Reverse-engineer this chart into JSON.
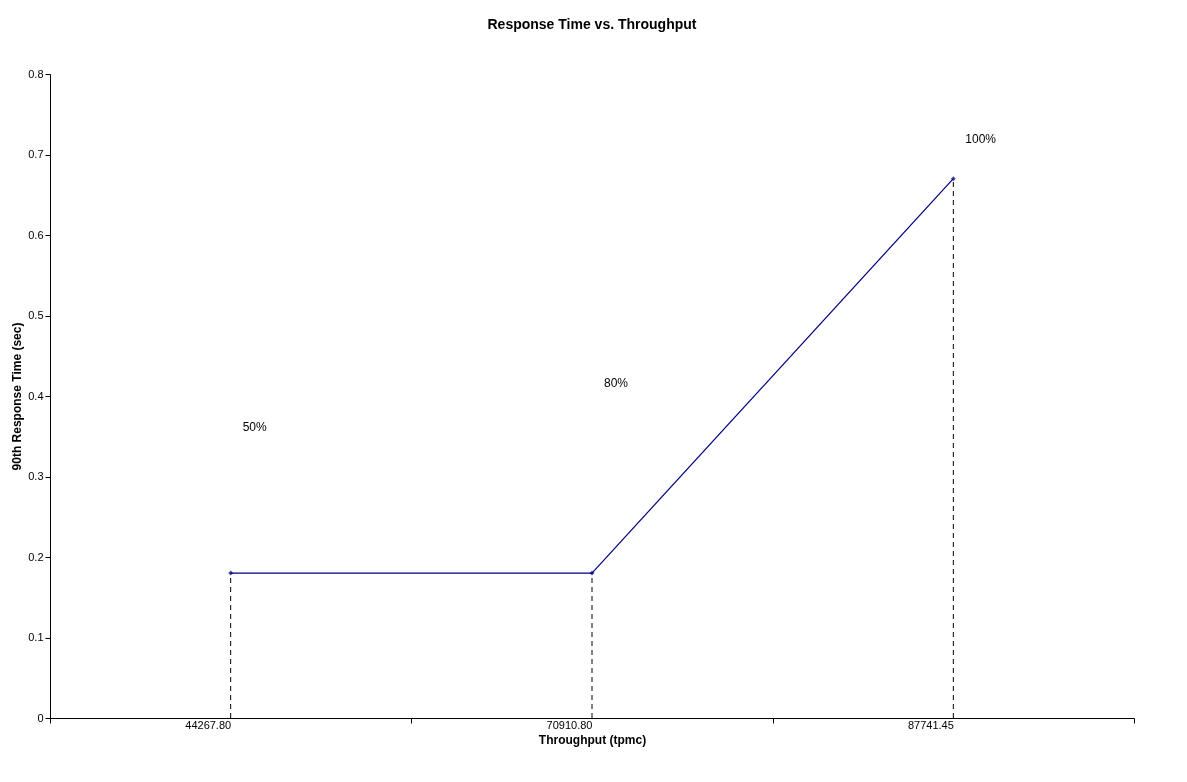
{
  "chart_data": {
    "type": "line",
    "title": "Response Time vs. Throughput",
    "xlabel": "Throughput (tpmc)",
    "ylabel": "90th Response Time (sec)",
    "categories": [
      "44267.80",
      "70910.80",
      "87741.45"
    ],
    "series": [
      {
        "color": "#000080",
        "values": [
          0.18,
          0.18,
          0.67
        ]
      }
    ],
    "ylim": [
      0,
      0.8
    ],
    "yticks": [
      0,
      0.1,
      0.2,
      0.3,
      0.4,
      0.5,
      0.6,
      0.7,
      0.8
    ],
    "grid": false,
    "marker": "diamond",
    "line_style": "solid",
    "ref_lines": [
      {
        "axis": "x",
        "value": "44267.80",
        "color": "#000000",
        "line_style": "dashed"
      },
      {
        "axis": "x",
        "value": "70910.80",
        "color": "#000000",
        "line_style": "dashed"
      },
      {
        "axis": "x",
        "value": "87741.45",
        "color": "#000000",
        "line_style": "dashed"
      }
    ],
    "annotations": [
      "50%",
      "80%",
      "100%"
    ]
  }
}
